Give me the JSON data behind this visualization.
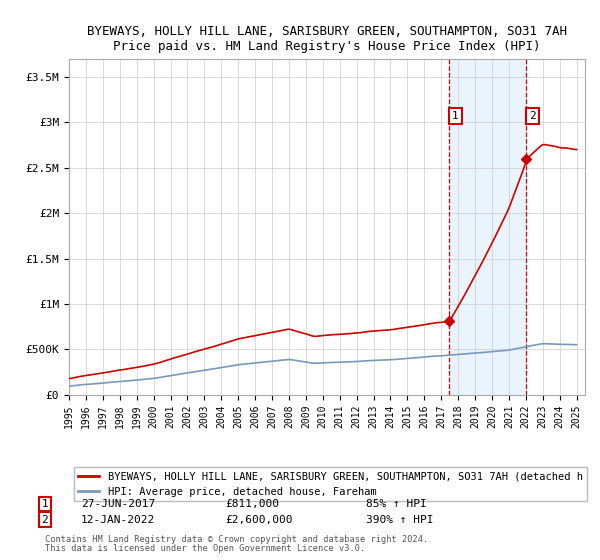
{
  "title1": "BYEWAYS, HOLLY HILL LANE, SARISBURY GREEN, SOUTHAMPTON, SO31 7AH",
  "title2": "Price paid vs. HM Land Registry's House Price Index (HPI)",
  "ylabel_ticks": [
    "£0",
    "£500K",
    "£1M",
    "£1.5M",
    "£2M",
    "£2.5M",
    "£3M",
    "£3.5M"
  ],
  "ytick_values": [
    0,
    500000,
    1000000,
    1500000,
    2000000,
    2500000,
    3000000,
    3500000
  ],
  "ylim": [
    0,
    3700000
  ],
  "xlim_start": 1995.0,
  "xlim_end": 2025.5,
  "sale1_x": 2017.49,
  "sale1_y": 811000,
  "sale2_x": 2022.04,
  "sale2_y": 2600000,
  "legend_red": "BYEWAYS, HOLLY HILL LANE, SARISBURY GREEN, SOUTHAMPTON, SO31 7AH (detached h",
  "legend_blue": "HPI: Average price, detached house, Fareham",
  "annot1_date": "27-JUN-2017",
  "annot1_price": "£811,000",
  "annot1_hpi": "85% ↑ HPI",
  "annot2_date": "12-JAN-2022",
  "annot2_price": "£2,600,000",
  "annot2_hpi": "390% ↑ HPI",
  "background_color": "#ffffff",
  "grid_color": "#cccccc",
  "red_color": "#cc0000",
  "blue_color": "#7799bb",
  "shade_color": "#ddeeff",
  "footnote1": "Contains HM Land Registry data © Crown copyright and database right 2024.",
  "footnote2": "This data is licensed under the Open Government Licence v3.0."
}
